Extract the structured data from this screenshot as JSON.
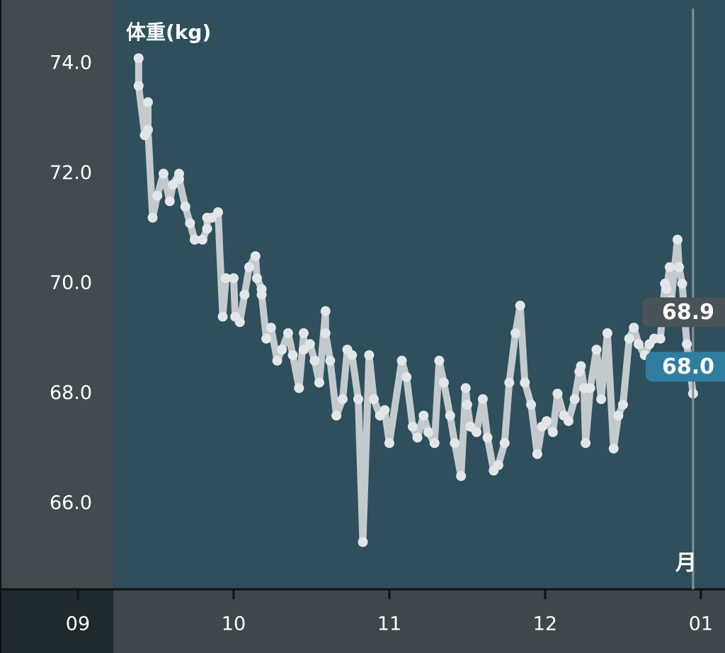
{
  "chart_data": {
    "type": "line",
    "title": "体重(kg)",
    "x": [
      9.39,
      9.39,
      9.43,
      9.45,
      9.45,
      9.48,
      9.51,
      9.55,
      9.59,
      9.61,
      9.65,
      9.65,
      9.69,
      9.72,
      9.75,
      9.8,
      9.83,
      9.83,
      9.86,
      9.9,
      9.93,
      9.95,
      10.0,
      10.01,
      10.04,
      10.07,
      10.1,
      10.14,
      10.15,
      10.18,
      10.18,
      10.21,
      10.24,
      10.28,
      10.31,
      10.35,
      10.38,
      10.42,
      10.45,
      10.45,
      10.49,
      10.52,
      10.55,
      10.59,
      10.59,
      10.62,
      10.66,
      10.7,
      10.73,
      10.76,
      10.8,
      10.83,
      10.87,
      10.9,
      10.94,
      10.97,
      11.0,
      11.08,
      11.11,
      11.15,
      11.18,
      11.22,
      11.25,
      11.29,
      11.32,
      11.35,
      11.39,
      11.42,
      11.46,
      11.49,
      11.5,
      11.52,
      11.56,
      11.6,
      11.63,
      11.67,
      11.7,
      11.74,
      11.77,
      11.81,
      11.84,
      11.87,
      11.91,
      11.95,
      11.98,
      12.01,
      12.05,
      12.08,
      12.12,
      12.15,
      12.19,
      12.22,
      12.23,
      12.25,
      12.26,
      12.29,
      12.33,
      12.36,
      12.4,
      12.44,
      12.47,
      12.5,
      12.54,
      12.57,
      12.6,
      12.64,
      12.67,
      12.7,
      12.74,
      12.77,
      12.78,
      12.8,
      12.81,
      12.85,
      12.86,
      12.88,
      12.91,
      12.95
    ],
    "series": [
      {
        "color": "#c3cace",
        "values": [
          74.1,
          73.6,
          72.7,
          73.3,
          72.8,
          71.2,
          71.6,
          72.0,
          71.5,
          71.8,
          72.0,
          71.9,
          71.4,
          71.1,
          70.8,
          70.8,
          71.0,
          71.2,
          71.2,
          71.3,
          69.4,
          70.1,
          70.1,
          69.4,
          69.3,
          69.8,
          70.3,
          70.5,
          70.1,
          69.9,
          69.8,
          69.0,
          69.2,
          68.6,
          68.8,
          69.1,
          68.7,
          68.1,
          69.1,
          68.8,
          68.9,
          68.6,
          68.2,
          69.5,
          69.1,
          68.6,
          67.6,
          67.9,
          68.8,
          68.7,
          67.9,
          65.3,
          68.7,
          67.9,
          67.6,
          67.7,
          67.1,
          68.6,
          68.3,
          67.4,
          67.2,
          67.6,
          67.3,
          67.1,
          68.6,
          68.2,
          67.6,
          67.1,
          66.5,
          68.1,
          67.8,
          67.4,
          67.3,
          67.9,
          67.2,
          66.6,
          66.7,
          67.1,
          68.2,
          69.1,
          69.6,
          68.2,
          67.8,
          66.9,
          67.4,
          67.5,
          67.3,
          68.0,
          67.6,
          67.5,
          67.9,
          68.4,
          68.5,
          68.1,
          67.1,
          68.1,
          68.8,
          67.9,
          69.1,
          67.0,
          67.6,
          67.8,
          69.0,
          69.2,
          68.9,
          68.7,
          68.9,
          69.0,
          69.0,
          70.0,
          69.9,
          70.3,
          69.7,
          70.8,
          70.3,
          70.0,
          68.9,
          68.0
        ]
      }
    ],
    "xlim": [
      8.5,
      13.155
    ],
    "ylim": [
      64.44,
      75.16
    ],
    "xticks": [
      {
        "value": 9,
        "label": "09"
      },
      10,
      11,
      12,
      {
        "value": 13,
        "label": "01"
      }
    ],
    "yticks": [
      {
        "value": 66,
        "label": "66.0"
      },
      {
        "value": 68,
        "label": "68.0"
      },
      {
        "value": 70,
        "label": "70.0"
      },
      {
        "value": 72,
        "label": "72.0"
      },
      {
        "value": 74,
        "label": "74.0"
      }
    ],
    "cursor": {
      "x": 12.95,
      "period_label": "月",
      "labels": [
        68.9,
        {
          "value": 68,
          "label": "68.0"
        }
      ]
    }
  }
}
